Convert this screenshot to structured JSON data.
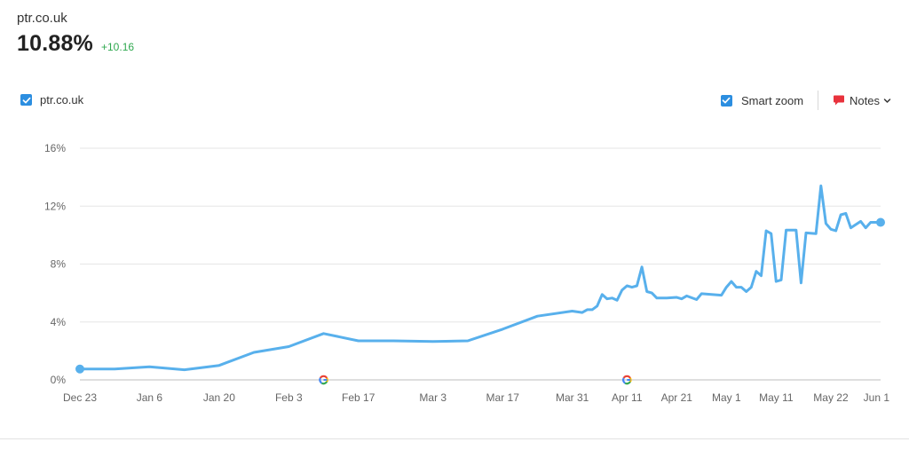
{
  "header": {
    "domain": "ptr.co.uk",
    "metric": "10.88%",
    "delta": "+10.16"
  },
  "legend": {
    "series_label": "ptr.co.uk",
    "series_checked": true
  },
  "tools": {
    "smart_zoom_label": "Smart zoom",
    "smart_zoom_checked": true,
    "notes_label": "Notes"
  },
  "colors": {
    "line": "#58b0ec",
    "checkbox": "#2c8ee0",
    "delta": "#2fa84f",
    "notes_icon": "#e8323c"
  },
  "icons": {
    "checkbox": "check-icon",
    "notes": "note-bubble-icon",
    "dropdown": "chevron-down-icon",
    "marker": "google-g-icon"
  },
  "chart_data": {
    "type": "line",
    "title": "",
    "xlabel": "",
    "ylabel": "",
    "ylim": [
      0,
      16
    ],
    "grid": true,
    "y_ticks": [
      "0%",
      "4%",
      "8%",
      "12%",
      "16%"
    ],
    "x_range": [
      "2023-12-23",
      "2024-06-01"
    ],
    "x_ticks": [
      {
        "label": "Dec 23",
        "date": "2023-12-23"
      },
      {
        "label": "Jan 6",
        "date": "2024-01-06"
      },
      {
        "label": "Jan 20",
        "date": "2024-01-20"
      },
      {
        "label": "Feb 3",
        "date": "2024-02-03"
      },
      {
        "label": "Feb 17",
        "date": "2024-02-17"
      },
      {
        "label": "Mar 3",
        "date": "2024-03-03"
      },
      {
        "label": "Mar 17",
        "date": "2024-03-17"
      },
      {
        "label": "Mar 31",
        "date": "2024-03-31"
      },
      {
        "label": "Apr 11",
        "date": "2024-04-11"
      },
      {
        "label": "Apr 21",
        "date": "2024-04-21"
      },
      {
        "label": "May 1",
        "date": "2024-05-01"
      },
      {
        "label": "May 11",
        "date": "2024-05-11"
      },
      {
        "label": "May 22",
        "date": "2024-05-22"
      },
      {
        "label": "Jun 1",
        "date": "2024-06-01"
      }
    ],
    "events": [
      {
        "date": "2024-02-10",
        "icon": "google-g-icon"
      },
      {
        "date": "2024-04-11",
        "icon": "google-g-icon"
      }
    ],
    "series": [
      {
        "name": "ptr.co.uk",
        "points": [
          [
            "2023-12-23",
            0.75
          ],
          [
            "2023-12-30",
            0.75
          ],
          [
            "2024-01-06",
            0.9
          ],
          [
            "2024-01-13",
            0.7
          ],
          [
            "2024-01-20",
            1.0
          ],
          [
            "2024-01-27",
            1.9
          ],
          [
            "2024-02-03",
            2.3
          ],
          [
            "2024-02-10",
            3.2
          ],
          [
            "2024-02-17",
            2.7
          ],
          [
            "2024-02-24",
            2.7
          ],
          [
            "2024-03-03",
            2.65
          ],
          [
            "2024-03-10",
            2.7
          ],
          [
            "2024-03-17",
            3.5
          ],
          [
            "2024-03-24",
            4.4
          ],
          [
            "2024-03-31",
            4.75
          ],
          [
            "2024-04-02",
            4.65
          ],
          [
            "2024-04-03",
            4.85
          ],
          [
            "2024-04-04",
            4.85
          ],
          [
            "2024-04-05",
            5.1
          ],
          [
            "2024-04-06",
            5.9
          ],
          [
            "2024-04-07",
            5.6
          ],
          [
            "2024-04-08",
            5.65
          ],
          [
            "2024-04-09",
            5.5
          ],
          [
            "2024-04-10",
            6.2
          ],
          [
            "2024-04-11",
            6.5
          ],
          [
            "2024-04-12",
            6.4
          ],
          [
            "2024-04-13",
            6.5
          ],
          [
            "2024-04-14",
            7.8
          ],
          [
            "2024-04-15",
            6.1
          ],
          [
            "2024-04-16",
            6.0
          ],
          [
            "2024-04-17",
            5.65
          ],
          [
            "2024-04-19",
            5.65
          ],
          [
            "2024-04-21",
            5.7
          ],
          [
            "2024-04-22",
            5.6
          ],
          [
            "2024-04-23",
            5.8
          ],
          [
            "2024-04-25",
            5.55
          ],
          [
            "2024-04-26",
            5.95
          ],
          [
            "2024-04-28",
            5.9
          ],
          [
            "2024-04-30",
            5.85
          ],
          [
            "2024-05-01",
            6.4
          ],
          [
            "2024-05-02",
            6.8
          ],
          [
            "2024-05-03",
            6.4
          ],
          [
            "2024-05-04",
            6.4
          ],
          [
            "2024-05-05",
            6.1
          ],
          [
            "2024-05-06",
            6.4
          ],
          [
            "2024-05-07",
            7.5
          ],
          [
            "2024-05-08",
            7.2
          ],
          [
            "2024-05-09",
            10.3
          ],
          [
            "2024-05-10",
            10.1
          ],
          [
            "2024-05-11",
            6.8
          ],
          [
            "2024-05-12",
            6.9
          ],
          [
            "2024-05-13",
            10.35
          ],
          [
            "2024-05-15",
            10.35
          ],
          [
            "2024-05-16",
            6.7
          ],
          [
            "2024-05-17",
            10.15
          ],
          [
            "2024-05-19",
            10.1
          ],
          [
            "2024-05-20",
            13.4
          ],
          [
            "2024-05-21",
            10.8
          ],
          [
            "2024-05-22",
            10.4
          ],
          [
            "2024-05-23",
            10.3
          ],
          [
            "2024-05-24",
            11.4
          ],
          [
            "2024-05-25",
            11.5
          ],
          [
            "2024-05-26",
            10.5
          ],
          [
            "2024-05-28",
            10.95
          ],
          [
            "2024-05-29",
            10.5
          ],
          [
            "2024-05-30",
            10.88
          ],
          [
            "2024-06-01",
            10.88
          ]
        ]
      }
    ]
  }
}
